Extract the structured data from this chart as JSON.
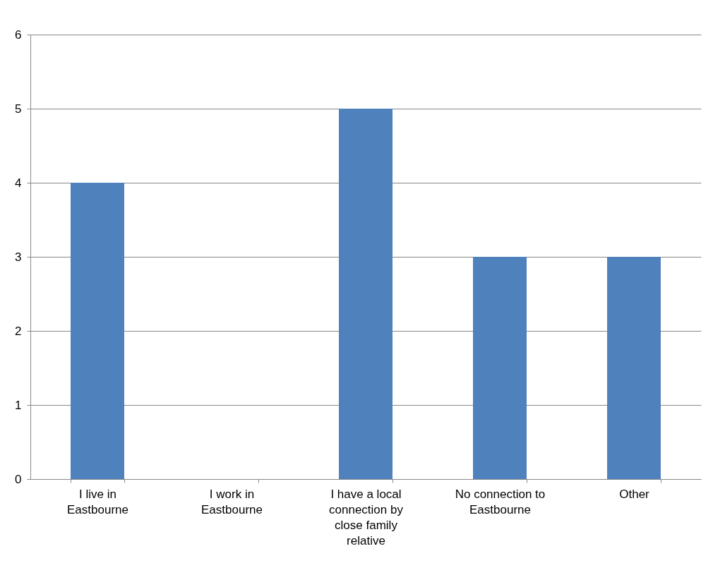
{
  "chart_data": {
    "type": "bar",
    "categories": [
      "I live in Eastbourne",
      "I work in Eastbourne",
      "I have a local connection by close family relative",
      "No connection to Eastbourne",
      "Other"
    ],
    "values": [
      4,
      0,
      5,
      3,
      3
    ],
    "color": "#4f81bd",
    "ylim": [
      0,
      6
    ],
    "yticks": [
      0,
      1,
      2,
      3,
      4,
      5,
      6
    ],
    "grid": "y"
  }
}
